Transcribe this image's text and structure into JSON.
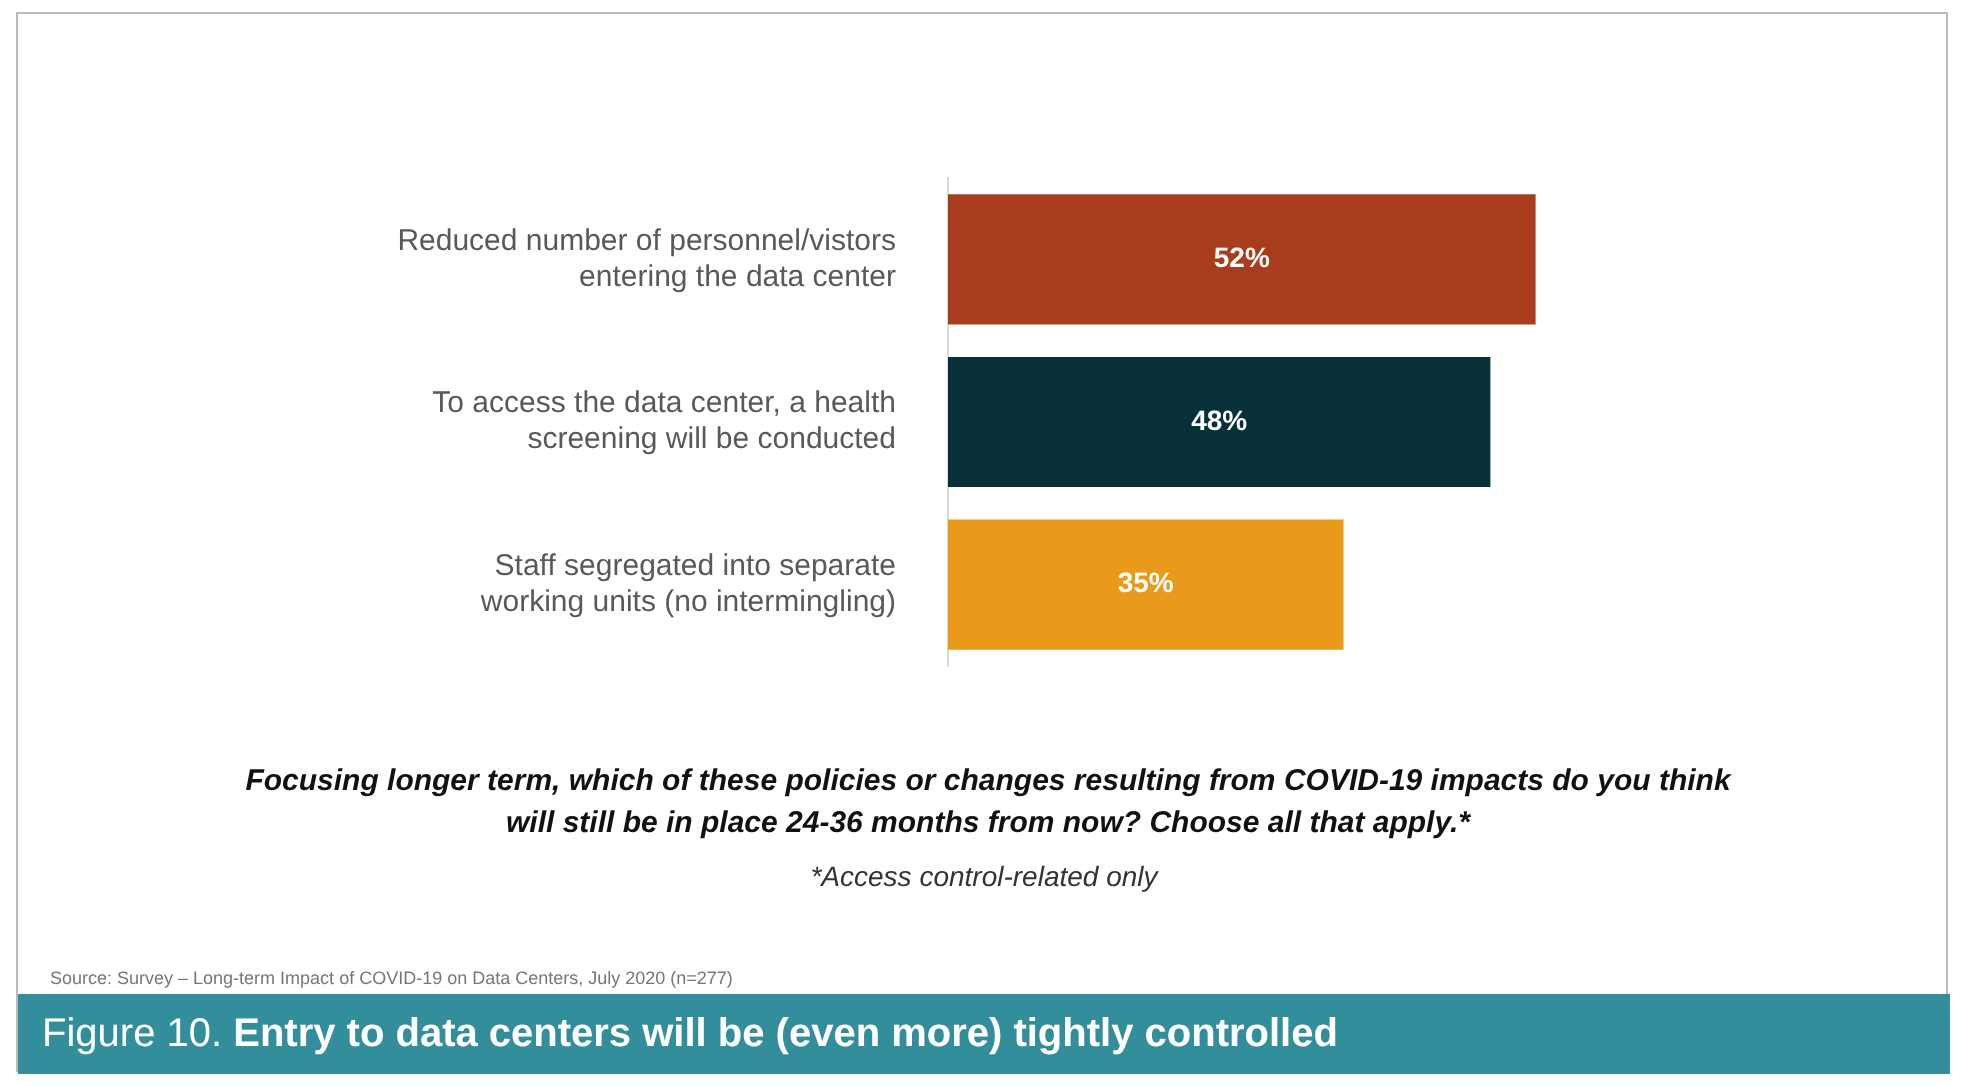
{
  "chart_data": {
    "type": "bar",
    "orientation": "horizontal",
    "title": "Figure 10. Entry to data centers will be (even more) tightly controlled",
    "categories": [
      "Reduced number of personnel/vistors entering the data center",
      "To access the data center, a health screening will be conducted",
      "Staff segregated into separate working units (no intermingling)"
    ],
    "values": [
      52,
      48,
      35
    ],
    "colors": [
      "#a83c1c",
      "#073039",
      "#e99a1b"
    ],
    "value_labels": [
      "52%",
      "48%",
      "35%"
    ],
    "legend": false,
    "annotations": [
      "Focusing longer term, which of these policies or changes resulting from COVID-19 impacts do you think will still be in place 24-36 months from now? Choose all that apply.*",
      "*Access control-related only",
      "Source: Survey – Long-term Impact of COVID-19 on Data Centers, July 2020 (n=277)"
    ]
  }
}
